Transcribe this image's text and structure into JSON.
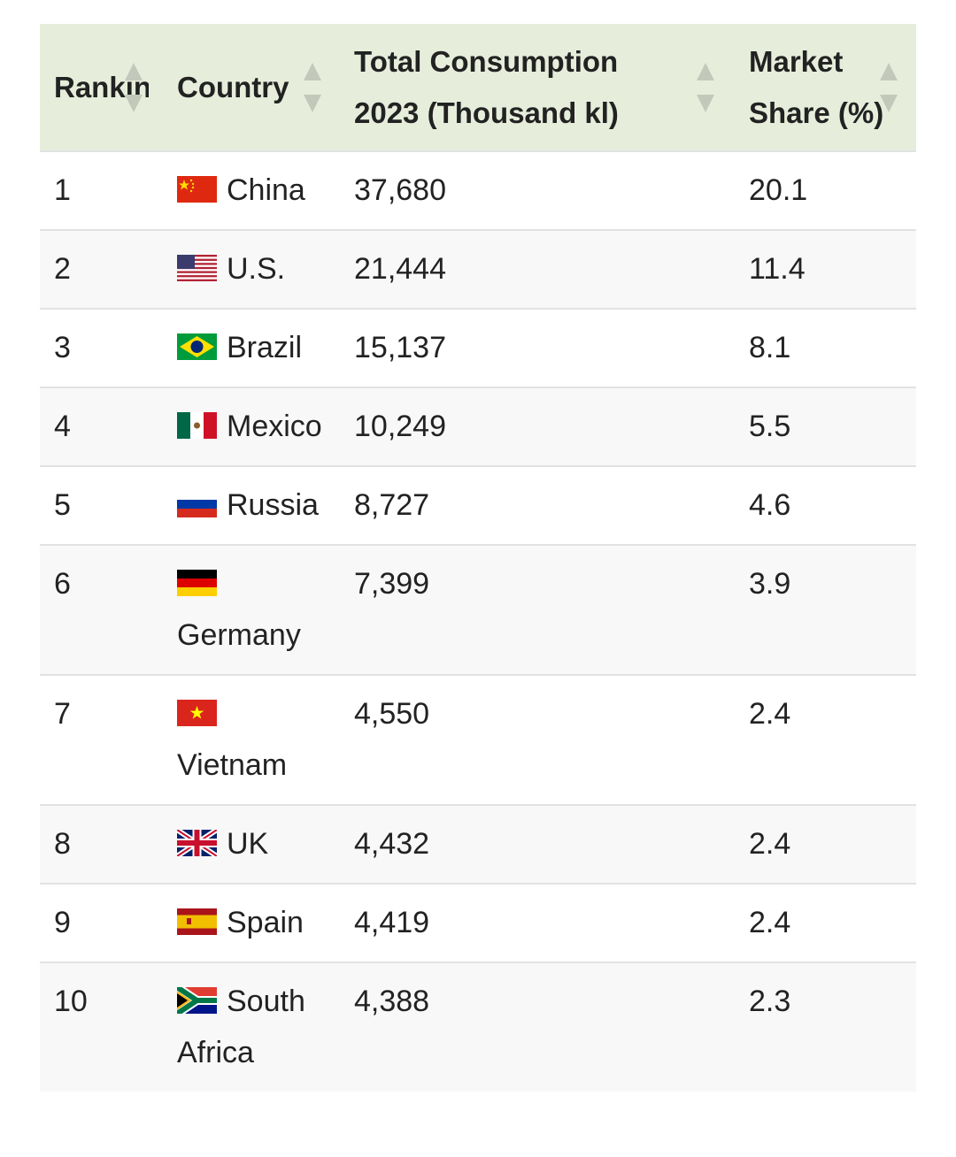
{
  "table": {
    "headers": [
      "Ranking",
      "Country",
      "Total Consumption 2023 (Thousand kl)",
      "Market Share (%)"
    ],
    "rows": [
      {
        "rank": "1",
        "country": "China",
        "flag": "flag-china-icon",
        "consumption": "37,680",
        "share": "20.1"
      },
      {
        "rank": "2",
        "country": "U.S.",
        "flag": "flag-us-icon",
        "consumption": "21,444",
        "share": "11.4"
      },
      {
        "rank": "3",
        "country": "Brazil",
        "flag": "flag-brazil-icon",
        "consumption": "15,137",
        "share": "8.1"
      },
      {
        "rank": "4",
        "country": "Mexico",
        "flag": "flag-mexico-icon",
        "consumption": "10,249",
        "share": "5.5"
      },
      {
        "rank": "5",
        "country": "Russia",
        "flag": "flag-russia-icon",
        "consumption": "8,727",
        "share": "4.6"
      },
      {
        "rank": "6",
        "country": "Germany",
        "flag": "flag-germany-icon",
        "consumption": "7,399",
        "share": "3.9"
      },
      {
        "rank": "7",
        "country": "Vietnam",
        "flag": "flag-vietnam-icon",
        "consumption": "4,550",
        "share": "2.4"
      },
      {
        "rank": "8",
        "country": "UK",
        "flag": "flag-uk-icon",
        "consumption": "4,432",
        "share": "2.4"
      },
      {
        "rank": "9",
        "country": "Spain",
        "flag": "flag-spain-icon",
        "consumption": "4,419",
        "share": "2.4"
      },
      {
        "rank": "10",
        "country": "South Africa",
        "flag": "flag-south-africa-icon",
        "consumption": "4,388",
        "share": "2.3"
      }
    ]
  },
  "colors": {
    "header_bg": "#e6eedb",
    "row_alt_bg": "#f8f8f8",
    "sort_arrow": "#c2c9ba"
  }
}
